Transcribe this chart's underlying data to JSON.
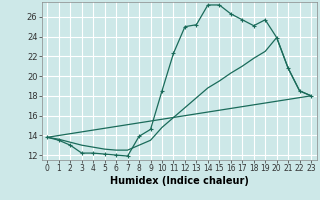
{
  "xlabel": "Humidex (Indice chaleur)",
  "bg_color": "#cde8e8",
  "grid_color": "#ffffff",
  "line_color": "#1a6b5a",
  "x_min": -0.5,
  "x_max": 23.5,
  "y_min": 11.5,
  "y_max": 27.5,
  "y_ticks": [
    12,
    14,
    16,
    18,
    20,
    22,
    24,
    26
  ],
  "series1_x": [
    0,
    1,
    2,
    3,
    4,
    5,
    6,
    7,
    8,
    9,
    10,
    11,
    12,
    13,
    14,
    15,
    16,
    17,
    18,
    19,
    20,
    21,
    22,
    23
  ],
  "series1_y": [
    13.8,
    13.5,
    13.0,
    12.2,
    12.2,
    12.1,
    12.0,
    11.9,
    13.9,
    14.6,
    18.5,
    22.3,
    25.0,
    25.2,
    27.2,
    27.2,
    26.3,
    25.7,
    25.1,
    25.7,
    23.9,
    20.8,
    18.5,
    18.0
  ],
  "series2_x": [
    0,
    1,
    2,
    3,
    4,
    5,
    6,
    7,
    8,
    9,
    10,
    11,
    12,
    13,
    14,
    15,
    16,
    17,
    18,
    19,
    20,
    21,
    22,
    23
  ],
  "series2_y": [
    13.8,
    13.6,
    13.3,
    13.0,
    12.8,
    12.6,
    12.5,
    12.5,
    13.0,
    13.5,
    14.8,
    15.8,
    16.8,
    17.8,
    18.8,
    19.5,
    20.3,
    21.0,
    21.8,
    22.5,
    23.9,
    20.8,
    18.5,
    18.0
  ],
  "series3_x": [
    0,
    23
  ],
  "series3_y": [
    13.8,
    18.0
  ],
  "xlabel_fontsize": 7,
  "tick_fontsize": 5.5,
  "ytick_fontsize": 6
}
